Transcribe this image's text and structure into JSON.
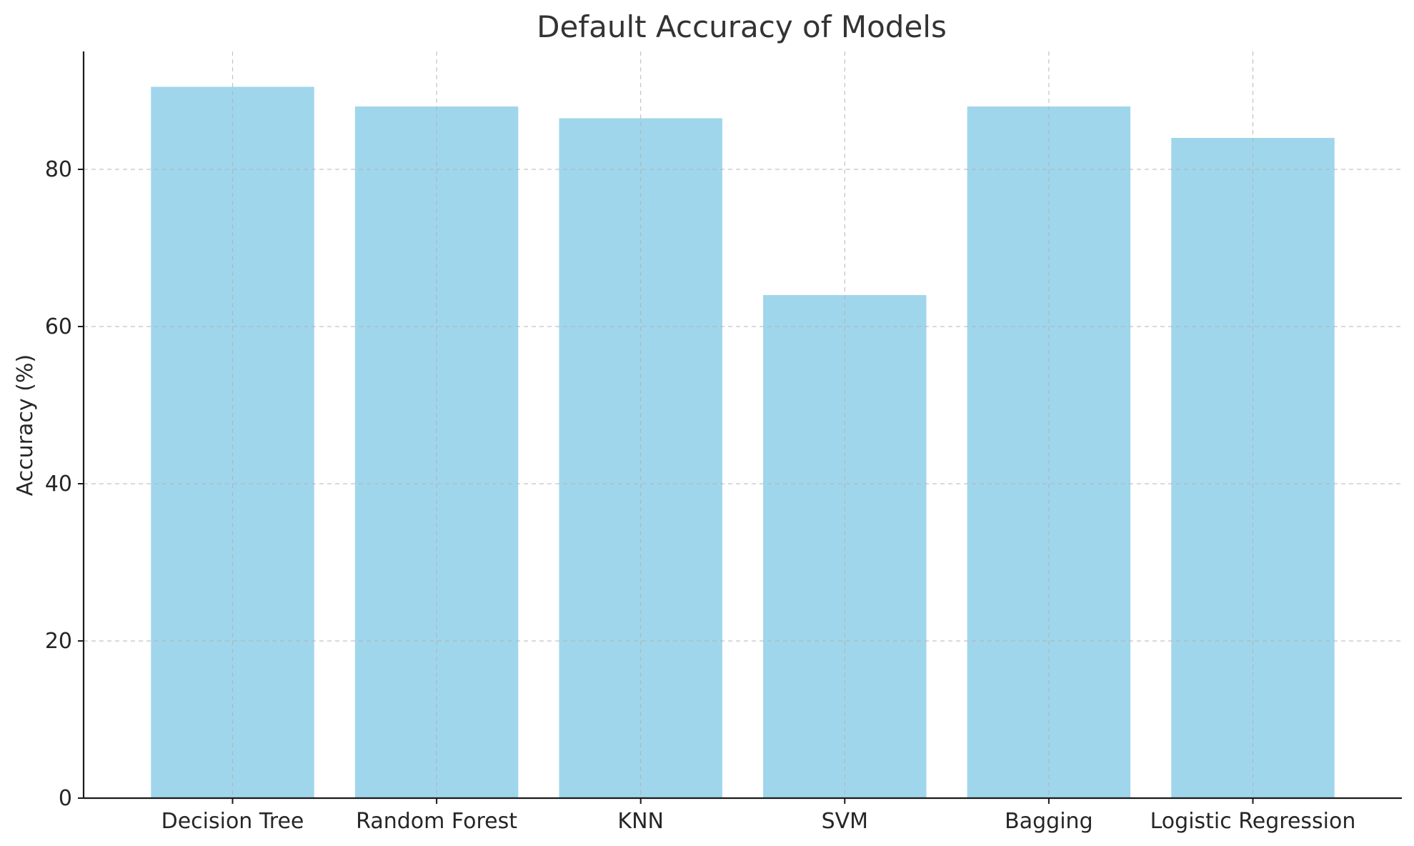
{
  "chart_data": {
    "type": "bar",
    "title": "Default Accuracy of Models",
    "xlabel": "",
    "ylabel": "Accuracy (%)",
    "categories": [
      "Decision Tree",
      "Random Forest",
      "KNN",
      "SVM",
      "Bagging",
      "Logistic Regression"
    ],
    "values": [
      90.5,
      88.0,
      86.5,
      64.0,
      88.0,
      84.0
    ],
    "ylim": [
      0,
      95
    ],
    "yticks": [
      0,
      20,
      40,
      60,
      80
    ],
    "grid": true,
    "bar_color": "#a0d6ec",
    "legend": "none"
  }
}
